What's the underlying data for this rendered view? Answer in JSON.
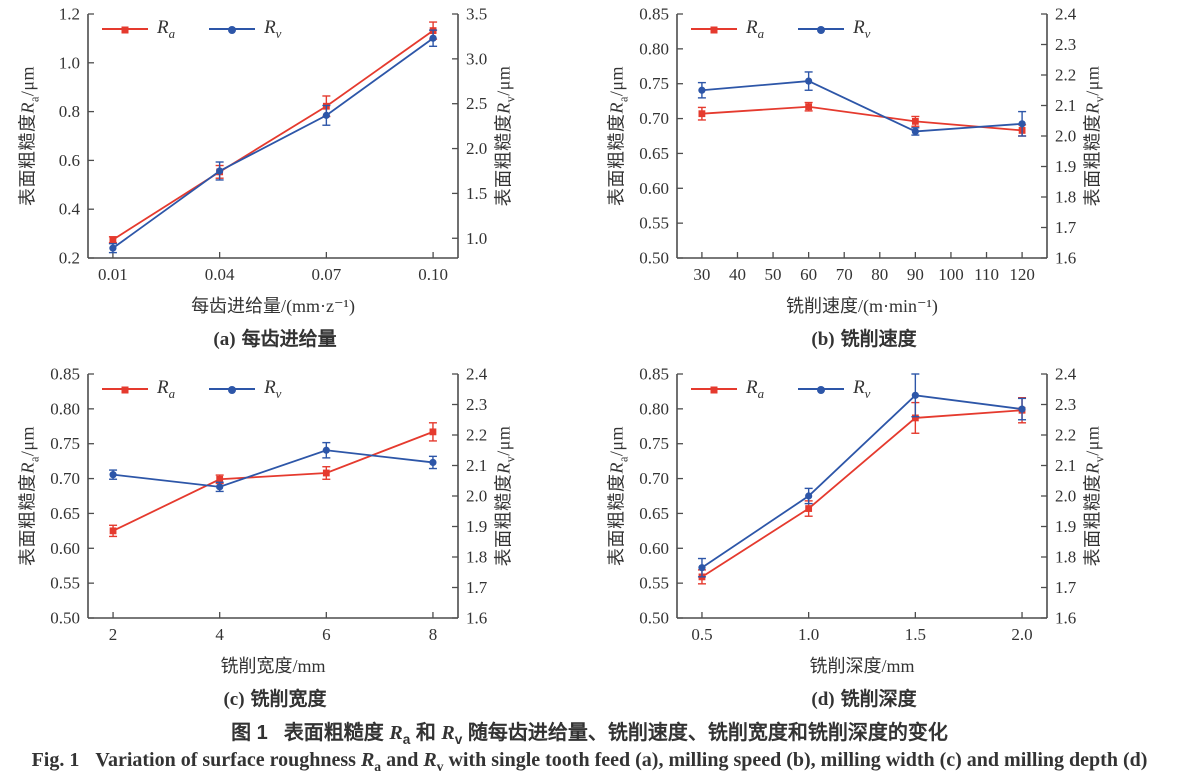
{
  "colors": {
    "ra": "#e53a2e",
    "rv": "#2d56a8",
    "axis": "#4d4d4d",
    "text": "#333333",
    "background": "#ffffff"
  },
  "legend": {
    "ra": {
      "symbol": "R",
      "sub": "a"
    },
    "rv": {
      "symbol": "R",
      "sub": "v"
    }
  },
  "captions": {
    "cn": {
      "fig": "图 1",
      "before": "表面粗糙度 ",
      "sym1": "R",
      "sub1": "a",
      "between": " 和 ",
      "sym2": "R",
      "sub2": "v",
      "after": " 随每齿进给量、铣削速度、铣削宽度和铣削深度的变化"
    },
    "en": {
      "fig": "Fig. 1",
      "before": "Variation of surface roughness ",
      "sym1": "R",
      "sub1": "a",
      "between": " and ",
      "sym2": "R",
      "sub2": "v",
      "after": " with single tooth feed (a), milling speed (b), milling width (c) and milling depth (d)"
    }
  },
  "chart_data": [
    {
      "type": "line",
      "panel_label": "(a)",
      "panel_name": "每齿进给量",
      "xlabel": "每齿进给量/(mm·z⁻¹)",
      "ylabel_left": {
        "prefix": "表面粗糙度",
        "symbol": "R",
        "sub": "a",
        "suffix": "/μm"
      },
      "ylabel_right": {
        "prefix": "表面粗糙度",
        "symbol": "R",
        "sub": "v",
        "suffix": "/μm"
      },
      "xlim": [
        0.003,
        0.107
      ],
      "ylim_left": [
        0.2,
        1.2
      ],
      "ylim_right": [
        0.78,
        3.5
      ],
      "x_ticks": [
        {
          "v": 0.01,
          "label": "0.01"
        },
        {
          "v": 0.04,
          "label": "0.04"
        },
        {
          "v": 0.07,
          "label": "0.07"
        },
        {
          "v": 0.1,
          "label": "0.10"
        }
      ],
      "left_ticks": [
        {
          "v": 0.2,
          "label": "0.2"
        },
        {
          "v": 0.4,
          "label": "0.4"
        },
        {
          "v": 0.6,
          "label": "0.6"
        },
        {
          "v": 0.8,
          "label": "0.8"
        },
        {
          "v": 1.0,
          "label": "1.0"
        },
        {
          "v": 1.2,
          "label": "1.2"
        }
      ],
      "right_ticks": [
        {
          "v": 1.0,
          "label": "1.0"
        },
        {
          "v": 1.5,
          "label": "1.5"
        },
        {
          "v": 2.0,
          "label": "2.0"
        },
        {
          "v": 2.5,
          "label": "2.5"
        },
        {
          "v": 3.0,
          "label": "3.0"
        },
        {
          "v": 3.5,
          "label": "3.5"
        }
      ],
      "series": [
        {
          "name": "Ra",
          "axis": "left",
          "color_key": "ra",
          "marker": "square",
          "x": [
            0.01,
            0.04,
            0.07,
            0.1
          ],
          "values": [
            0.275,
            0.553,
            0.822,
            1.132
          ],
          "errors": [
            0.012,
            0.026,
            0.042,
            0.035
          ]
        },
        {
          "name": "Rv",
          "axis": "right",
          "color_key": "rv",
          "marker": "circle",
          "x": [
            0.01,
            0.04,
            0.07,
            0.1
          ],
          "values": [
            0.89,
            1.75,
            2.37,
            3.23
          ],
          "errors": [
            0.05,
            0.1,
            0.11,
            0.09
          ]
        }
      ]
    },
    {
      "type": "line",
      "panel_label": "(b)",
      "panel_name": "铣削速度",
      "xlabel": "铣削速度/(m·min⁻¹)",
      "ylabel_left": {
        "prefix": "表面粗糙度",
        "symbol": "R",
        "sub": "a",
        "suffix": "/μm"
      },
      "ylabel_right": {
        "prefix": "表面粗糙度",
        "symbol": "R",
        "sub": "v",
        "suffix": "/μm"
      },
      "xlim": [
        23,
        127
      ],
      "ylim_left": [
        0.5,
        0.85
      ],
      "ylim_right": [
        1.6,
        2.4
      ],
      "x_ticks": [
        {
          "v": 30,
          "label": "30"
        },
        {
          "v": 40,
          "label": "40"
        },
        {
          "v": 50,
          "label": "50"
        },
        {
          "v": 60,
          "label": "60"
        },
        {
          "v": 70,
          "label": "70"
        },
        {
          "v": 80,
          "label": "80"
        },
        {
          "v": 90,
          "label": "90"
        },
        {
          "v": 100,
          "label": "100"
        },
        {
          "v": 110,
          "label": "110"
        },
        {
          "v": 120,
          "label": "120"
        }
      ],
      "left_ticks": [
        {
          "v": 0.5,
          "label": "0.50"
        },
        {
          "v": 0.55,
          "label": "0.55"
        },
        {
          "v": 0.6,
          "label": "0.60"
        },
        {
          "v": 0.65,
          "label": "0.65"
        },
        {
          "v": 0.7,
          "label": "0.70"
        },
        {
          "v": 0.75,
          "label": "0.75"
        },
        {
          "v": 0.8,
          "label": "0.80"
        },
        {
          "v": 0.85,
          "label": "0.85"
        }
      ],
      "right_ticks": [
        {
          "v": 1.6,
          "label": "1.6"
        },
        {
          "v": 1.7,
          "label": "1.7"
        },
        {
          "v": 1.8,
          "label": "1.8"
        },
        {
          "v": 1.9,
          "label": "1.9"
        },
        {
          "v": 2.0,
          "label": "2.0"
        },
        {
          "v": 2.1,
          "label": "2.1"
        },
        {
          "v": 2.2,
          "label": "2.2"
        },
        {
          "v": 2.3,
          "label": "2.3"
        },
        {
          "v": 2.4,
          "label": "2.4"
        }
      ],
      "series": [
        {
          "name": "Ra",
          "axis": "left",
          "color_key": "ra",
          "marker": "square",
          "x": [
            30,
            60,
            90,
            120
          ],
          "values": [
            0.707,
            0.717,
            0.696,
            0.683
          ],
          "errors": [
            0.009,
            0.006,
            0.007,
            0.008
          ]
        },
        {
          "name": "Rv",
          "axis": "right",
          "color_key": "rv",
          "marker": "circle",
          "x": [
            30,
            60,
            90,
            120
          ],
          "values": [
            2.15,
            2.18,
            2.015,
            2.04
          ],
          "errors": [
            0.025,
            0.03,
            0.012,
            0.04
          ]
        }
      ]
    },
    {
      "type": "line",
      "panel_label": "(c)",
      "panel_name": "铣削宽度",
      "xlabel": "铣削宽度/mm",
      "ylabel_left": {
        "prefix": "表面粗糙度",
        "symbol": "R",
        "sub": "a",
        "suffix": "/μm"
      },
      "ylabel_right": {
        "prefix": "表面粗糙度",
        "symbol": "R",
        "sub": "v",
        "suffix": "/μm"
      },
      "xlim": [
        1.53,
        8.47
      ],
      "ylim_left": [
        0.5,
        0.85
      ],
      "ylim_right": [
        1.6,
        2.4
      ],
      "x_ticks": [
        {
          "v": 2,
          "label": "2"
        },
        {
          "v": 4,
          "label": "4"
        },
        {
          "v": 6,
          "label": "6"
        },
        {
          "v": 8,
          "label": "8"
        }
      ],
      "left_ticks": [
        {
          "v": 0.5,
          "label": "0.50"
        },
        {
          "v": 0.55,
          "label": "0.55"
        },
        {
          "v": 0.6,
          "label": "0.60"
        },
        {
          "v": 0.65,
          "label": "0.65"
        },
        {
          "v": 0.7,
          "label": "0.70"
        },
        {
          "v": 0.75,
          "label": "0.75"
        },
        {
          "v": 0.8,
          "label": "0.80"
        },
        {
          "v": 0.85,
          "label": "0.85"
        }
      ],
      "right_ticks": [
        {
          "v": 1.6,
          "label": "1.6"
        },
        {
          "v": 1.7,
          "label": "1.7"
        },
        {
          "v": 1.8,
          "label": "1.8"
        },
        {
          "v": 1.9,
          "label": "1.9"
        },
        {
          "v": 2.0,
          "label": "2.0"
        },
        {
          "v": 2.1,
          "label": "2.1"
        },
        {
          "v": 2.2,
          "label": "2.2"
        },
        {
          "v": 2.3,
          "label": "2.3"
        },
        {
          "v": 2.4,
          "label": "2.4"
        }
      ],
      "series": [
        {
          "name": "Ra",
          "axis": "left",
          "color_key": "ra",
          "marker": "square",
          "x": [
            2,
            4,
            6,
            8
          ],
          "values": [
            0.625,
            0.699,
            0.708,
            0.767
          ],
          "errors": [
            0.008,
            0.006,
            0.009,
            0.013
          ]
        },
        {
          "name": "Rv",
          "axis": "right",
          "color_key": "rv",
          "marker": "circle",
          "x": [
            2,
            4,
            6,
            8
          ],
          "values": [
            2.07,
            2.03,
            2.15,
            2.11
          ],
          "errors": [
            0.015,
            0.015,
            0.025,
            0.02
          ]
        }
      ]
    },
    {
      "type": "line",
      "panel_label": "(d)",
      "panel_name": "铣削深度",
      "xlabel": "铣削深度/mm",
      "ylabel_left": {
        "prefix": "表面粗糙度",
        "symbol": "R",
        "sub": "a",
        "suffix": "/μm"
      },
      "ylabel_right": {
        "prefix": "表面粗糙度",
        "symbol": "R",
        "sub": "v",
        "suffix": "/μm"
      },
      "xlim": [
        0.383,
        2.117
      ],
      "ylim_left": [
        0.5,
        0.85
      ],
      "ylim_right": [
        1.6,
        2.4
      ],
      "x_ticks": [
        {
          "v": 0.5,
          "label": "0.5"
        },
        {
          "v": 1.0,
          "label": "1.0"
        },
        {
          "v": 1.5,
          "label": "1.5"
        },
        {
          "v": 2.0,
          "label": "2.0"
        }
      ],
      "left_ticks": [
        {
          "v": 0.5,
          "label": "0.50"
        },
        {
          "v": 0.55,
          "label": "0.55"
        },
        {
          "v": 0.6,
          "label": "0.60"
        },
        {
          "v": 0.65,
          "label": "0.65"
        },
        {
          "v": 0.7,
          "label": "0.70"
        },
        {
          "v": 0.75,
          "label": "0.75"
        },
        {
          "v": 0.8,
          "label": "0.80"
        },
        {
          "v": 0.85,
          "label": "0.85"
        }
      ],
      "right_ticks": [
        {
          "v": 1.6,
          "label": "1.6"
        },
        {
          "v": 1.7,
          "label": "1.7"
        },
        {
          "v": 1.8,
          "label": "1.8"
        },
        {
          "v": 1.9,
          "label": "1.9"
        },
        {
          "v": 2.0,
          "label": "2.0"
        },
        {
          "v": 2.1,
          "label": "2.1"
        },
        {
          "v": 2.2,
          "label": "2.2"
        },
        {
          "v": 2.3,
          "label": "2.3"
        },
        {
          "v": 2.4,
          "label": "2.4"
        }
      ],
      "series": [
        {
          "name": "Ra",
          "axis": "left",
          "color_key": "ra",
          "marker": "square",
          "x": [
            0.5,
            1.0,
            1.5,
            2.0
          ],
          "values": [
            0.559,
            0.657,
            0.787,
            0.798
          ],
          "errors": [
            0.01,
            0.011,
            0.022,
            0.018
          ]
        },
        {
          "name": "Rv",
          "axis": "right",
          "color_key": "rv",
          "marker": "circle",
          "x": [
            0.5,
            1.0,
            1.5,
            2.0
          ],
          "values": [
            1.765,
            2.0,
            2.33,
            2.285
          ],
          "errors": [
            0.03,
            0.025,
            0.07,
            0.035
          ]
        }
      ]
    }
  ]
}
